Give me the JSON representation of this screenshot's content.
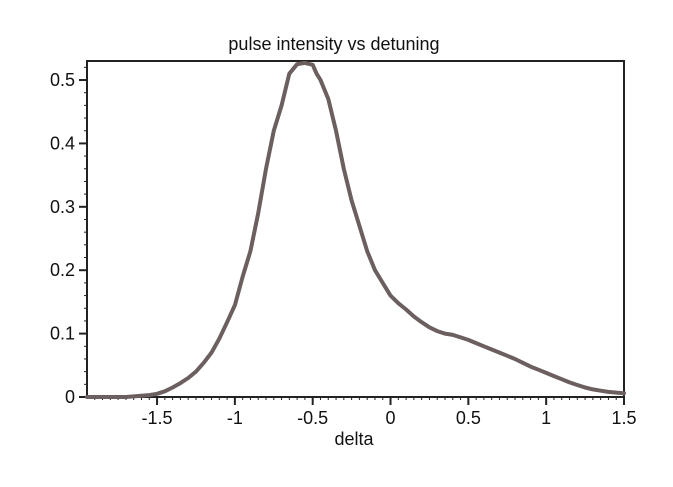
{
  "chart_data": {
    "type": "line",
    "title": "pulse intensity vs detuning",
    "xlabel": "delta",
    "ylabel": "",
    "xlim": [
      -1.95,
      1.5
    ],
    "ylim": [
      0,
      0.53
    ],
    "x_ticks": [
      {
        "value": -1.5,
        "label": "-1.5"
      },
      {
        "value": -1,
        "label": "-1"
      },
      {
        "value": -0.5,
        "label": "-0.5"
      },
      {
        "value": 0,
        "label": "0"
      },
      {
        "value": 0.5,
        "label": "0.5"
      },
      {
        "value": 1,
        "label": "1"
      },
      {
        "value": 1.5,
        "label": "1.5"
      }
    ],
    "y_ticks": [
      {
        "value": 0,
        "label": "0"
      },
      {
        "value": 0.1,
        "label": "0.1"
      },
      {
        "value": 0.2,
        "label": "0.2"
      },
      {
        "value": 0.3,
        "label": "0.3"
      },
      {
        "value": 0.4,
        "label": "0.4"
      },
      {
        "value": 0.5,
        "label": "0.5"
      }
    ],
    "grid": false,
    "line_color": "#6b5f5f",
    "series": [
      {
        "x": [
          -1.95,
          -1.8,
          -1.7,
          -1.65,
          -1.6,
          -1.55,
          -1.5,
          -1.45,
          -1.4,
          -1.35,
          -1.3,
          -1.25,
          -1.2,
          -1.15,
          -1.1,
          -1.05,
          -1.0,
          -0.95,
          -0.9,
          -0.85,
          -0.8,
          -0.75,
          -0.7,
          -0.65,
          -0.6,
          -0.55,
          -0.5,
          -0.475,
          -0.45,
          -0.4,
          -0.35,
          -0.3,
          -0.25,
          -0.2,
          -0.15,
          -0.1,
          -0.05,
          0.0,
          0.05,
          0.1,
          0.15,
          0.2,
          0.25,
          0.3,
          0.35,
          0.4,
          0.45,
          0.5,
          0.55,
          0.6,
          0.65,
          0.7,
          0.75,
          0.8,
          0.85,
          0.9,
          0.95,
          1.0,
          1.05,
          1.1,
          1.15,
          1.2,
          1.25,
          1.3,
          1.35,
          1.4,
          1.45,
          1.5
        ],
        "y": [
          0.0,
          0.0,
          0.0,
          0.001,
          0.002,
          0.003,
          0.005,
          0.009,
          0.015,
          0.022,
          0.03,
          0.04,
          0.054,
          0.07,
          0.092,
          0.118,
          0.145,
          0.19,
          0.23,
          0.29,
          0.36,
          0.42,
          0.46,
          0.51,
          0.525,
          0.527,
          0.524,
          0.51,
          0.5,
          0.47,
          0.42,
          0.36,
          0.31,
          0.27,
          0.23,
          0.2,
          0.18,
          0.16,
          0.148,
          0.138,
          0.127,
          0.118,
          0.11,
          0.104,
          0.1,
          0.098,
          0.094,
          0.09,
          0.085,
          0.08,
          0.075,
          0.07,
          0.065,
          0.06,
          0.054,
          0.048,
          0.043,
          0.038,
          0.033,
          0.028,
          0.023,
          0.019,
          0.015,
          0.012,
          0.01,
          0.008,
          0.007,
          0.006
        ]
      }
    ]
  }
}
